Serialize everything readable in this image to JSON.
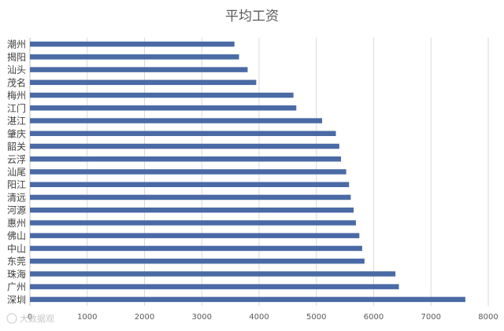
{
  "chart_data": {
    "type": "bar",
    "orientation": "horizontal",
    "title": "平均工资",
    "categories": [
      "潮州",
      "揭阳",
      "汕头",
      "茂名",
      "梅州",
      "江门",
      "湛江",
      "肇庆",
      "韶关",
      "云浮",
      "汕尾",
      "阳江",
      "清远",
      "河源",
      "惠州",
      "佛山",
      "中山",
      "东莞",
      "珠海",
      "广州",
      "深圳"
    ],
    "values": [
      3570,
      3650,
      3800,
      3950,
      4600,
      4650,
      5100,
      5340,
      5400,
      5430,
      5520,
      5570,
      5600,
      5650,
      5690,
      5750,
      5800,
      5840,
      6380,
      6440,
      7600
    ],
    "xlim": [
      0,
      8000
    ],
    "xticks": [
      0,
      1000,
      2000,
      3000,
      4000,
      5000,
      6000,
      7000,
      8000
    ],
    "bar_color": "#4a6aa5",
    "grid": true
  },
  "watermark": "大数据观"
}
